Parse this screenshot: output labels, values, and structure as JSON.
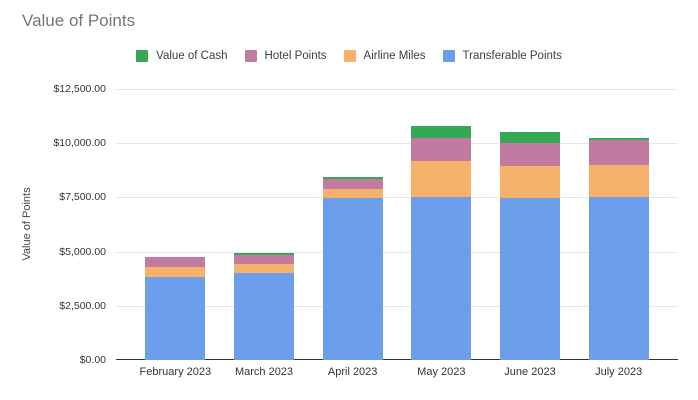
{
  "title": "Value of Points",
  "colors": {
    "background": "#ffffff",
    "title_text": "#757575",
    "axis_text": "#333333",
    "gridline": "#e6e6e6",
    "axis_line": "#333333",
    "legend_text": "#3c4043"
  },
  "chart_data": {
    "type": "bar",
    "stacked": true,
    "title": "Value of Points",
    "xlabel": "",
    "ylabel": "Value of Points",
    "ylim": [
      0,
      12500
    ],
    "grid": true,
    "legend_position": "top",
    "categories": [
      "February 2023",
      "March 2023",
      "April 2023",
      "May 2023",
      "June 2023",
      "July 2023"
    ],
    "yticks_top_to_bottom": [
      "$12,500.00",
      "$10,000.00",
      "$7,500.00",
      "$5,000.00",
      "$2,500.00",
      "$0.00"
    ],
    "legend_items": [
      {
        "label": "Value of Cash",
        "color": "#34a853"
      },
      {
        "label": "Hotel Points",
        "color": "#c27ba0"
      },
      {
        "label": "Airline Miles",
        "color": "#f6b26b"
      },
      {
        "label": "Transferable Points",
        "color": "#6d9eeb"
      }
    ],
    "series": [
      {
        "name": "Transferable Points",
        "color": "#6d9eeb",
        "values": [
          3850,
          4000,
          7450,
          7500,
          7450,
          7500
        ]
      },
      {
        "name": "Airline Miles",
        "color": "#f6b26b",
        "values": [
          450,
          450,
          450,
          1700,
          1500,
          1500
        ]
      },
      {
        "name": "Hotel Points",
        "color": "#c27ba0",
        "values": [
          450,
          400,
          450,
          1050,
          1050,
          1150
        ]
      },
      {
        "name": "Value of Cash",
        "color": "#34a853",
        "values": [
          0,
          100,
          100,
          550,
          500,
          100
        ]
      }
    ],
    "stacking_order": "series listed bottom-to-top",
    "totals": [
      4750,
      4950,
      8450,
      10800,
      10500,
      10250
    ]
  }
}
